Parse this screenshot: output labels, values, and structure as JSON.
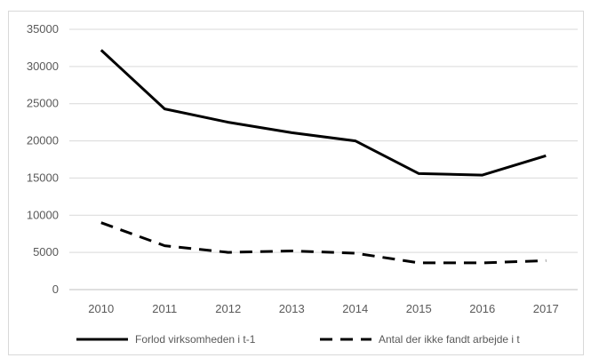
{
  "chart_data": {
    "type": "line",
    "title": "",
    "xlabel": "",
    "ylabel": "",
    "categories": [
      "2010",
      "2011",
      "2012",
      "2013",
      "2014",
      "2015",
      "2016",
      "2017"
    ],
    "ylim": [
      0,
      35000
    ],
    "yticks": [
      0,
      5000,
      10000,
      15000,
      20000,
      25000,
      30000,
      35000
    ],
    "ytick_labels": [
      "0",
      "5000",
      "10000",
      "15000",
      "20000",
      "25000",
      "30000",
      "35000"
    ],
    "grid": "horizontal",
    "legend_position": "bottom",
    "series": [
      {
        "name": "Forlod virksomheden i t-1",
        "values": [
          32200,
          24300,
          22500,
          21100,
          20000,
          15600,
          15400,
          18000
        ],
        "color": "#000000",
        "style": "solid"
      },
      {
        "name": "Antal der ikke fandt arbejde i t",
        "values": [
          9000,
          5900,
          5000,
          5200,
          4900,
          3600,
          3600,
          3900
        ],
        "color": "#000000",
        "style": "dashed"
      }
    ]
  }
}
